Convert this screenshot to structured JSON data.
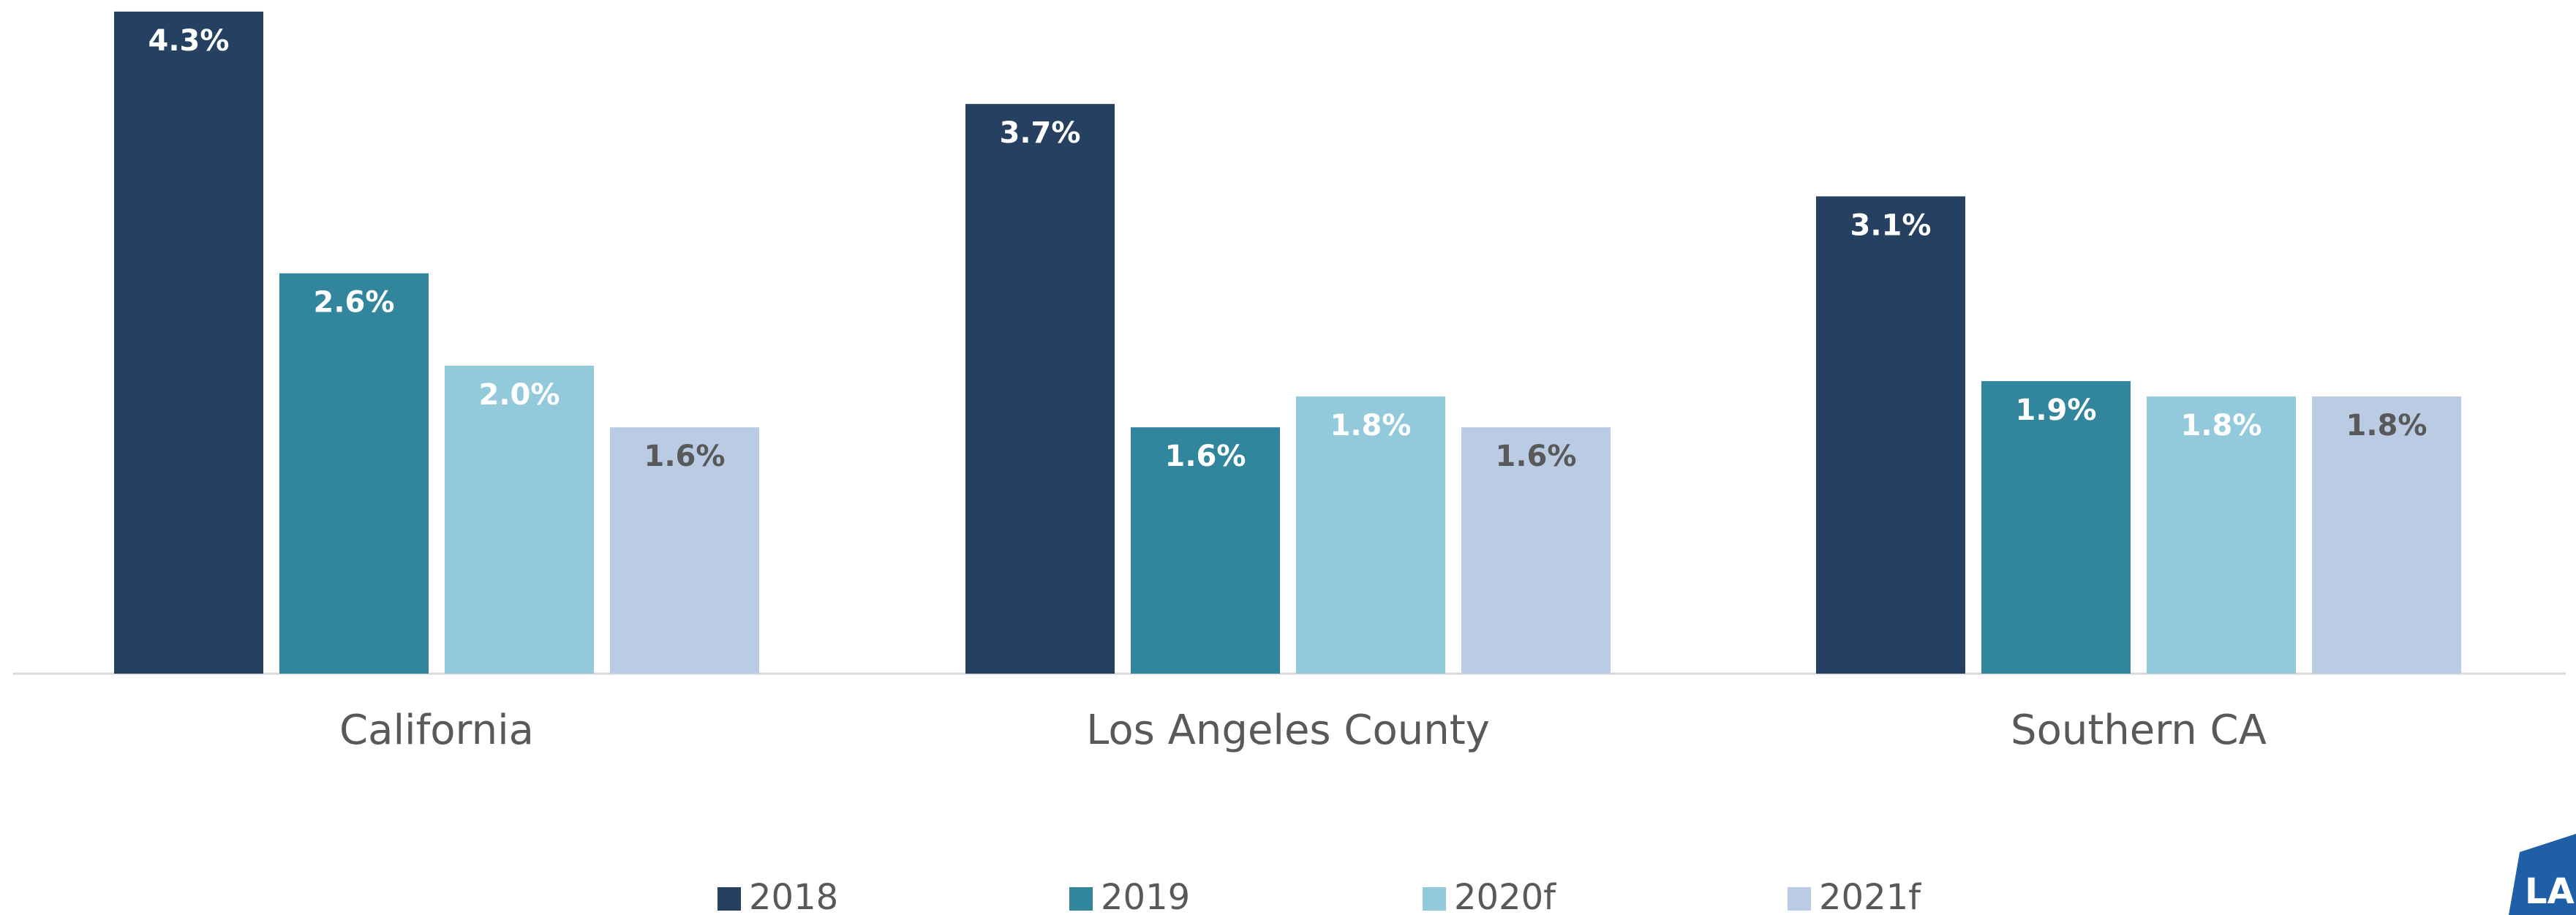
{
  "chart_data": {
    "type": "bar",
    "categories": [
      "California",
      "Los Angeles County",
      "Southern CA"
    ],
    "series": [
      {
        "name": "2018",
        "color": "#264061",
        "label_color": "#ffffff",
        "values": [
          4.3,
          3.7,
          3.1
        ],
        "value_labels": [
          "4.3%",
          "3.7%",
          "3.1%"
        ]
      },
      {
        "name": "2019",
        "color": "#31869d",
        "label_color": "#ffffff",
        "values": [
          2.6,
          1.6,
          1.9
        ],
        "value_labels": [
          "2.6%",
          "1.6%",
          "1.9%"
        ]
      },
      {
        "name": "2020f",
        "color": "#93cadb",
        "label_color": "#ffffff",
        "values": [
          2.0,
          1.8,
          1.8
        ],
        "value_labels": [
          "2.0%",
          "1.8%",
          "1.8%"
        ]
      },
      {
        "name": "2021f",
        "color": "#b9cce4",
        "label_color": "#595959",
        "values": [
          1.6,
          1.6,
          1.8
        ],
        "value_labels": [
          "1.6%",
          "1.6%",
          "1.8%"
        ]
      }
    ],
    "legend": "bottom"
  },
  "logo": "LA"
}
